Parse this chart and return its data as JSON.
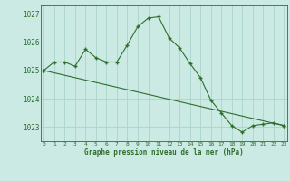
{
  "line1_x": [
    0,
    1,
    2,
    3,
    4,
    5,
    6,
    7,
    8,
    9,
    10,
    11,
    12,
    13,
    14,
    15,
    16,
    17,
    18,
    19,
    20,
    21,
    22,
    23
  ],
  "line1_y": [
    1025.0,
    1025.3,
    1025.3,
    1025.15,
    1025.75,
    1025.45,
    1025.3,
    1025.3,
    1025.9,
    1026.55,
    1026.85,
    1026.9,
    1026.15,
    1025.8,
    1025.25,
    1024.75,
    1023.95,
    1023.5,
    1023.05,
    1022.82,
    1023.05,
    1023.1,
    1023.15,
    1023.05
  ],
  "line2_x": [
    0,
    23
  ],
  "line2_y": [
    1025.0,
    1023.05
  ],
  "line_color": "#2d6e2d",
  "bg_color": "#cceae4",
  "grid_color": "#aad4cc",
  "xlabel": "Graphe pression niveau de la mer (hPa)",
  "ylim": [
    1022.5,
    1027.3
  ],
  "xlim": [
    -0.3,
    23.3
  ],
  "yticks": [
    1023,
    1024,
    1025,
    1026,
    1027
  ],
  "xticks": [
    0,
    1,
    2,
    3,
    4,
    5,
    6,
    7,
    8,
    9,
    10,
    11,
    12,
    13,
    14,
    15,
    16,
    17,
    18,
    19,
    20,
    21,
    22,
    23
  ],
  "marker": "+"
}
